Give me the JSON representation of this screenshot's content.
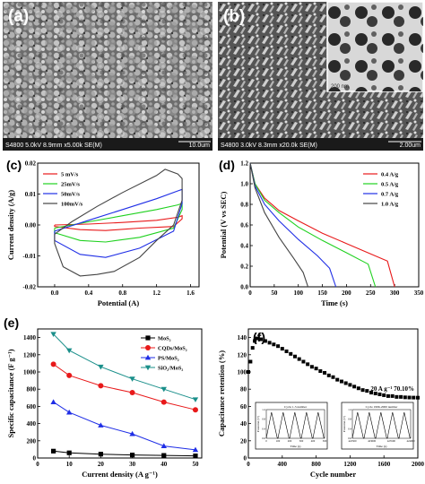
{
  "colors": {
    "black": "#000000",
    "red": "#e8191a",
    "green": "#1fd11f",
    "blue": "#1f2ee6",
    "teal": "#1a8f8a",
    "gray": "#444444"
  },
  "panels": {
    "a": {
      "letter": "(a)",
      "footer": "S4800 5.0kV 8.9mm x5.00k SE(M)",
      "scale": "10.0um"
    },
    "b": {
      "letter": "(b)",
      "footer": "S4800 3.0kV 8.3mm x20.0k SE(M)",
      "scale": "2.00um",
      "inset_scale": "200 nm"
    }
  },
  "chart_data": [
    {
      "panel": "c",
      "letter": "(c)",
      "type": "line",
      "xlabel": "Potential (A)",
      "ylabel": "Current density (A/g)",
      "xlim": [
        -0.2,
        1.7
      ],
      "ylim": [
        -0.02,
        0.02
      ],
      "xticks": [
        "0.0",
        "0.4",
        "0.8",
        "1.2",
        "1.6"
      ],
      "xtick_values": [
        0.0,
        0.4,
        0.8,
        1.2,
        1.6
      ],
      "yticks": [
        "-0.02",
        "-0.01",
        "0.00",
        "0.01",
        "0.02"
      ],
      "ytick_values": [
        -0.02,
        -0.01,
        0.0,
        0.01,
        0.02
      ],
      "legend": "top-left",
      "series": [
        {
          "name": "5 mV/s",
          "color": "#e8191a",
          "upper": [
            [
              0.0,
              0.0
            ],
            [
              0.4,
              0.0003
            ],
            [
              0.8,
              0.0008
            ],
            [
              1.2,
              0.0015
            ],
            [
              1.45,
              0.0025
            ],
            [
              1.5,
              0.003
            ]
          ],
          "lower": [
            [
              1.5,
              0.002
            ],
            [
              1.4,
              -0.0005
            ],
            [
              1.0,
              -0.001
            ],
            [
              0.6,
              -0.0018
            ],
            [
              0.3,
              -0.0015
            ],
            [
              0.0,
              -0.0005
            ]
          ]
        },
        {
          "name": "25mV/s",
          "color": "#1fd11f",
          "upper": [
            [
              0.0,
              -0.001
            ],
            [
              0.4,
              0.001
            ],
            [
              0.8,
              0.003
            ],
            [
              1.2,
              0.005
            ],
            [
              1.45,
              0.0065
            ],
            [
              1.5,
              0.007
            ]
          ],
          "lower": [
            [
              1.5,
              0.005
            ],
            [
              1.4,
              -0.001
            ],
            [
              1.0,
              -0.004
            ],
            [
              0.6,
              -0.0055
            ],
            [
              0.3,
              -0.005
            ],
            [
              0.0,
              -0.0025
            ]
          ]
        },
        {
          "name": "50mV/s",
          "color": "#1f2ee6",
          "upper": [
            [
              0.0,
              -0.002
            ],
            [
              0.4,
              0.0015
            ],
            [
              0.8,
              0.005
            ],
            [
              1.2,
              0.0085
            ],
            [
              1.45,
              0.011
            ],
            [
              1.5,
              0.0115
            ]
          ],
          "lower": [
            [
              1.5,
              0.007
            ],
            [
              1.4,
              -0.002
            ],
            [
              1.0,
              -0.0075
            ],
            [
              0.6,
              -0.0105
            ],
            [
              0.3,
              -0.0095
            ],
            [
              0.0,
              -0.005
            ]
          ]
        },
        {
          "name": "100mV/s",
          "color": "#444444",
          "upper": [
            [
              0.0,
              -0.003
            ],
            [
              0.2,
              0.001
            ],
            [
              0.5,
              0.006
            ],
            [
              0.8,
              0.0105
            ],
            [
              1.2,
              0.016
            ],
            [
              1.3,
              0.018
            ],
            [
              1.45,
              0.0165
            ],
            [
              1.5,
              0.015
            ]
          ],
          "lower": [
            [
              1.5,
              0.008
            ],
            [
              1.4,
              0.0
            ],
            [
              1.2,
              -0.005
            ],
            [
              1.0,
              -0.0105
            ],
            [
              0.7,
              -0.015
            ],
            [
              0.5,
              -0.016
            ],
            [
              0.3,
              -0.0165
            ],
            [
              0.1,
              -0.0135
            ],
            [
              0.0,
              -0.006
            ]
          ]
        }
      ]
    },
    {
      "panel": "d",
      "letter": "(d)",
      "type": "line",
      "xlabel": "Time (s)",
      "ylabel": "Potential (V vs SEC)",
      "xlim": [
        0,
        350
      ],
      "ylim": [
        0.0,
        1.2
      ],
      "xticks": [
        "0",
        "50",
        "100",
        "150",
        "200",
        "250",
        "300",
        "350"
      ],
      "xtick_values": [
        0,
        50,
        100,
        150,
        200,
        250,
        300,
        350
      ],
      "yticks": [
        "0.0",
        "0.2",
        "0.4",
        "0.6",
        "0.8",
        "1.0",
        "1.2"
      ],
      "ytick_values": [
        0.0,
        0.2,
        0.4,
        0.6,
        0.8,
        1.0,
        1.2
      ],
      "legend": "top-right",
      "series": [
        {
          "name": "0.4 A/g",
          "color": "#e8191a",
          "x": [
            0,
            10,
            30,
            60,
            100,
            150,
            200,
            250,
            285,
            300
          ],
          "y": [
            1.2,
            1.0,
            0.86,
            0.74,
            0.64,
            0.52,
            0.42,
            0.32,
            0.25,
            0.0
          ]
        },
        {
          "name": "0.5 A/g",
          "color": "#1fd11f",
          "x": [
            0,
            10,
            30,
            60,
            100,
            150,
            200,
            245,
            260
          ],
          "y": [
            1.2,
            1.0,
            0.84,
            0.72,
            0.58,
            0.45,
            0.33,
            0.22,
            0.0
          ]
        },
        {
          "name": "0.7 A/g",
          "color": "#1f2ee6",
          "x": [
            0,
            10,
            30,
            60,
            100,
            140,
            165,
            178
          ],
          "y": [
            1.2,
            0.98,
            0.8,
            0.64,
            0.46,
            0.3,
            0.18,
            0.0
          ]
        },
        {
          "name": "1.0 A/g",
          "color": "#444444",
          "x": [
            0,
            10,
            30,
            60,
            90,
            110,
            120
          ],
          "y": [
            1.2,
            0.96,
            0.72,
            0.48,
            0.28,
            0.14,
            0.0
          ]
        }
      ]
    },
    {
      "panel": "e",
      "letter": "(e)",
      "type": "line",
      "xlabel": "Current density (A g⁻¹)",
      "ylabel": "Specific capacitance (F g⁻¹)",
      "xlim": [
        0,
        52
      ],
      "ylim": [
        0,
        1500
      ],
      "xticks": [
        "0",
        "10",
        "20",
        "30",
        "40",
        "50"
      ],
      "xtick_values": [
        0,
        10,
        20,
        30,
        40,
        50
      ],
      "yticks": [
        "0",
        "200",
        "400",
        "600",
        "800",
        "1000",
        "1200",
        "1400"
      ],
      "ytick_values": [
        0,
        200,
        400,
        600,
        800,
        1000,
        1200,
        1400
      ],
      "legend": "top-right",
      "categories": [
        5,
        10,
        20,
        30,
        40,
        50
      ],
      "series": [
        {
          "name": "MoS₂",
          "color": "#000000",
          "marker": "square",
          "values": [
            80,
            60,
            45,
            35,
            30,
            25
          ]
        },
        {
          "name": "CQDs/MoS₂",
          "color": "#e8191a",
          "marker": "circle",
          "values": [
            1090,
            960,
            840,
            760,
            650,
            560
          ]
        },
        {
          "name": "PS/MoS₂",
          "color": "#1f2ee6",
          "marker": "triangle",
          "values": [
            650,
            530,
            380,
            280,
            140,
            95
          ]
        },
        {
          "name": "SiO₂/MoS₂",
          "color": "#1a8f8a",
          "marker": "triangle-down",
          "values": [
            1440,
            1250,
            1060,
            920,
            800,
            680
          ]
        }
      ]
    },
    {
      "panel": "f",
      "letter": "(f)",
      "type": "scatter",
      "xlabel": "Cycle number",
      "ylabel": "Capacitance retention (%)",
      "xlim": [
        0,
        2000
      ],
      "ylim": [
        0,
        150
      ],
      "xticks": [
        "0",
        "400",
        "800",
        "1200",
        "1600",
        "2000"
      ],
      "xtick_values": [
        0,
        400,
        800,
        1200,
        1600,
        2000
      ],
      "yticks": [
        "0",
        "20",
        "40",
        "60",
        "80",
        "100",
        "120",
        "140"
      ],
      "ytick_values": [
        0,
        20,
        40,
        60,
        80,
        100,
        120,
        140
      ],
      "annotation": "20 A g⁻¹ 70.10%",
      "series": [
        {
          "name": "retention",
          "color": "#000000",
          "x": [
            0,
            25,
            50,
            75,
            100,
            150,
            200,
            250,
            300,
            350,
            400,
            450,
            500,
            550,
            600,
            650,
            700,
            750,
            800,
            850,
            900,
            950,
            1000,
            1050,
            1100,
            1150,
            1200,
            1250,
            1300,
            1350,
            1400,
            1450,
            1500,
            1550,
            1600,
            1650,
            1700,
            1750,
            1800,
            1850,
            1900,
            1950,
            2000
          ],
          "y": [
            100,
            112,
            128,
            136,
            139,
            138,
            136,
            134,
            132,
            130,
            127,
            124,
            121,
            118,
            115,
            112,
            109,
            106,
            104,
            101,
            99,
            96,
            94,
            91,
            89,
            87,
            85,
            83,
            81,
            79,
            78,
            76,
            75,
            74,
            73,
            72,
            72,
            71,
            71,
            70.5,
            70.3,
            70.2,
            70.1
          ]
        }
      ],
      "insets": [
        {
          "title": "Cycle 1-5 number",
          "xlabel": "Time (s)",
          "ylabel": "Potential (V)",
          "xticks": [
            "0",
            "100",
            "200",
            "300",
            "400",
            "500"
          ],
          "yticks": [
            "0.0",
            "0.4",
            "0.8",
            "1.2"
          ],
          "cycles": 5
        },
        {
          "title": "Cycle 1996-2000 number",
          "xlabel": "Time (s)",
          "ylabel": "Potential (V)",
          "xticks": [
            "422500",
            "423000",
            "423500",
            "424000"
          ],
          "yticks": [
            "0.0",
            "0.4",
            "0.8",
            "1.2"
          ],
          "cycles": 5
        }
      ]
    }
  ]
}
